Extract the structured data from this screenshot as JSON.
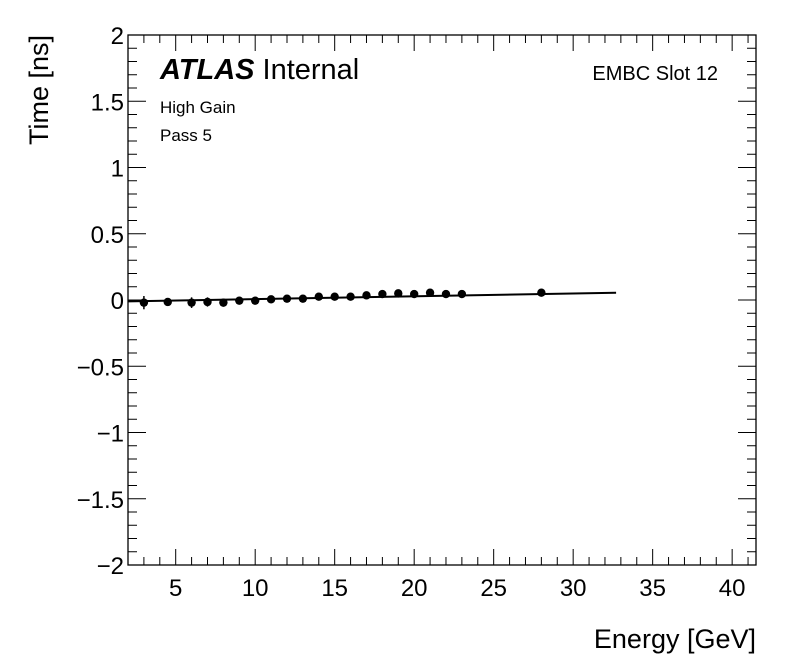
{
  "chart_data": {
    "type": "scatter",
    "title": "",
    "xlabel": "Energy [GeV]",
    "ylabel": "Time [ns]",
    "xlim": [
      2,
      41.5
    ],
    "ylim": [
      -2,
      2
    ],
    "x_ticks": [
      5,
      10,
      15,
      20,
      25,
      30,
      35,
      40
    ],
    "y_ticks": [
      2,
      1.5,
      1,
      0.5,
      0,
      -0.5,
      -1,
      -1.5,
      -2
    ],
    "x_tick_labels": [
      "5",
      "10",
      "15",
      "20",
      "25",
      "30",
      "35",
      "40"
    ],
    "y_tick_labels": [
      "2",
      "1.5",
      "1",
      "0.5",
      "0",
      "−0.5",
      "−1",
      "−1.5",
      "−2"
    ],
    "grid": false,
    "series": [
      {
        "x": [
          3,
          4.5,
          6,
          7,
          8,
          9,
          10,
          11,
          12,
          13,
          14,
          15,
          16,
          17,
          18,
          19,
          20,
          21,
          22,
          23,
          28
        ],
        "y": [
          -0.02,
          -0.015,
          -0.02,
          -0.015,
          -0.02,
          -0.005,
          -0.005,
          0.005,
          0.01,
          0.01,
          0.025,
          0.025,
          0.025,
          0.035,
          0.045,
          0.05,
          0.045,
          0.055,
          0.045,
          0.045,
          0.055
        ],
        "yerr": [
          0.05,
          0.03,
          0.04,
          0.035,
          0.03,
          0.025,
          0.025,
          0.02,
          0.02,
          0.02,
          0.02,
          0.02,
          0.02,
          0.02,
          0.02,
          0.02,
          0.02,
          0.02,
          0.02,
          0.02,
          0.015
        ]
      }
    ],
    "fit_line": {
      "x": [
        2,
        32.7
      ],
      "y": [
        -0.01,
        0.055
      ]
    },
    "annotations": {
      "atlas_label": "ATLAS",
      "atlas_status": "Internal",
      "note1": "High Gain",
      "note2": "Pass 5",
      "region": "EMBC Slot 12"
    }
  }
}
